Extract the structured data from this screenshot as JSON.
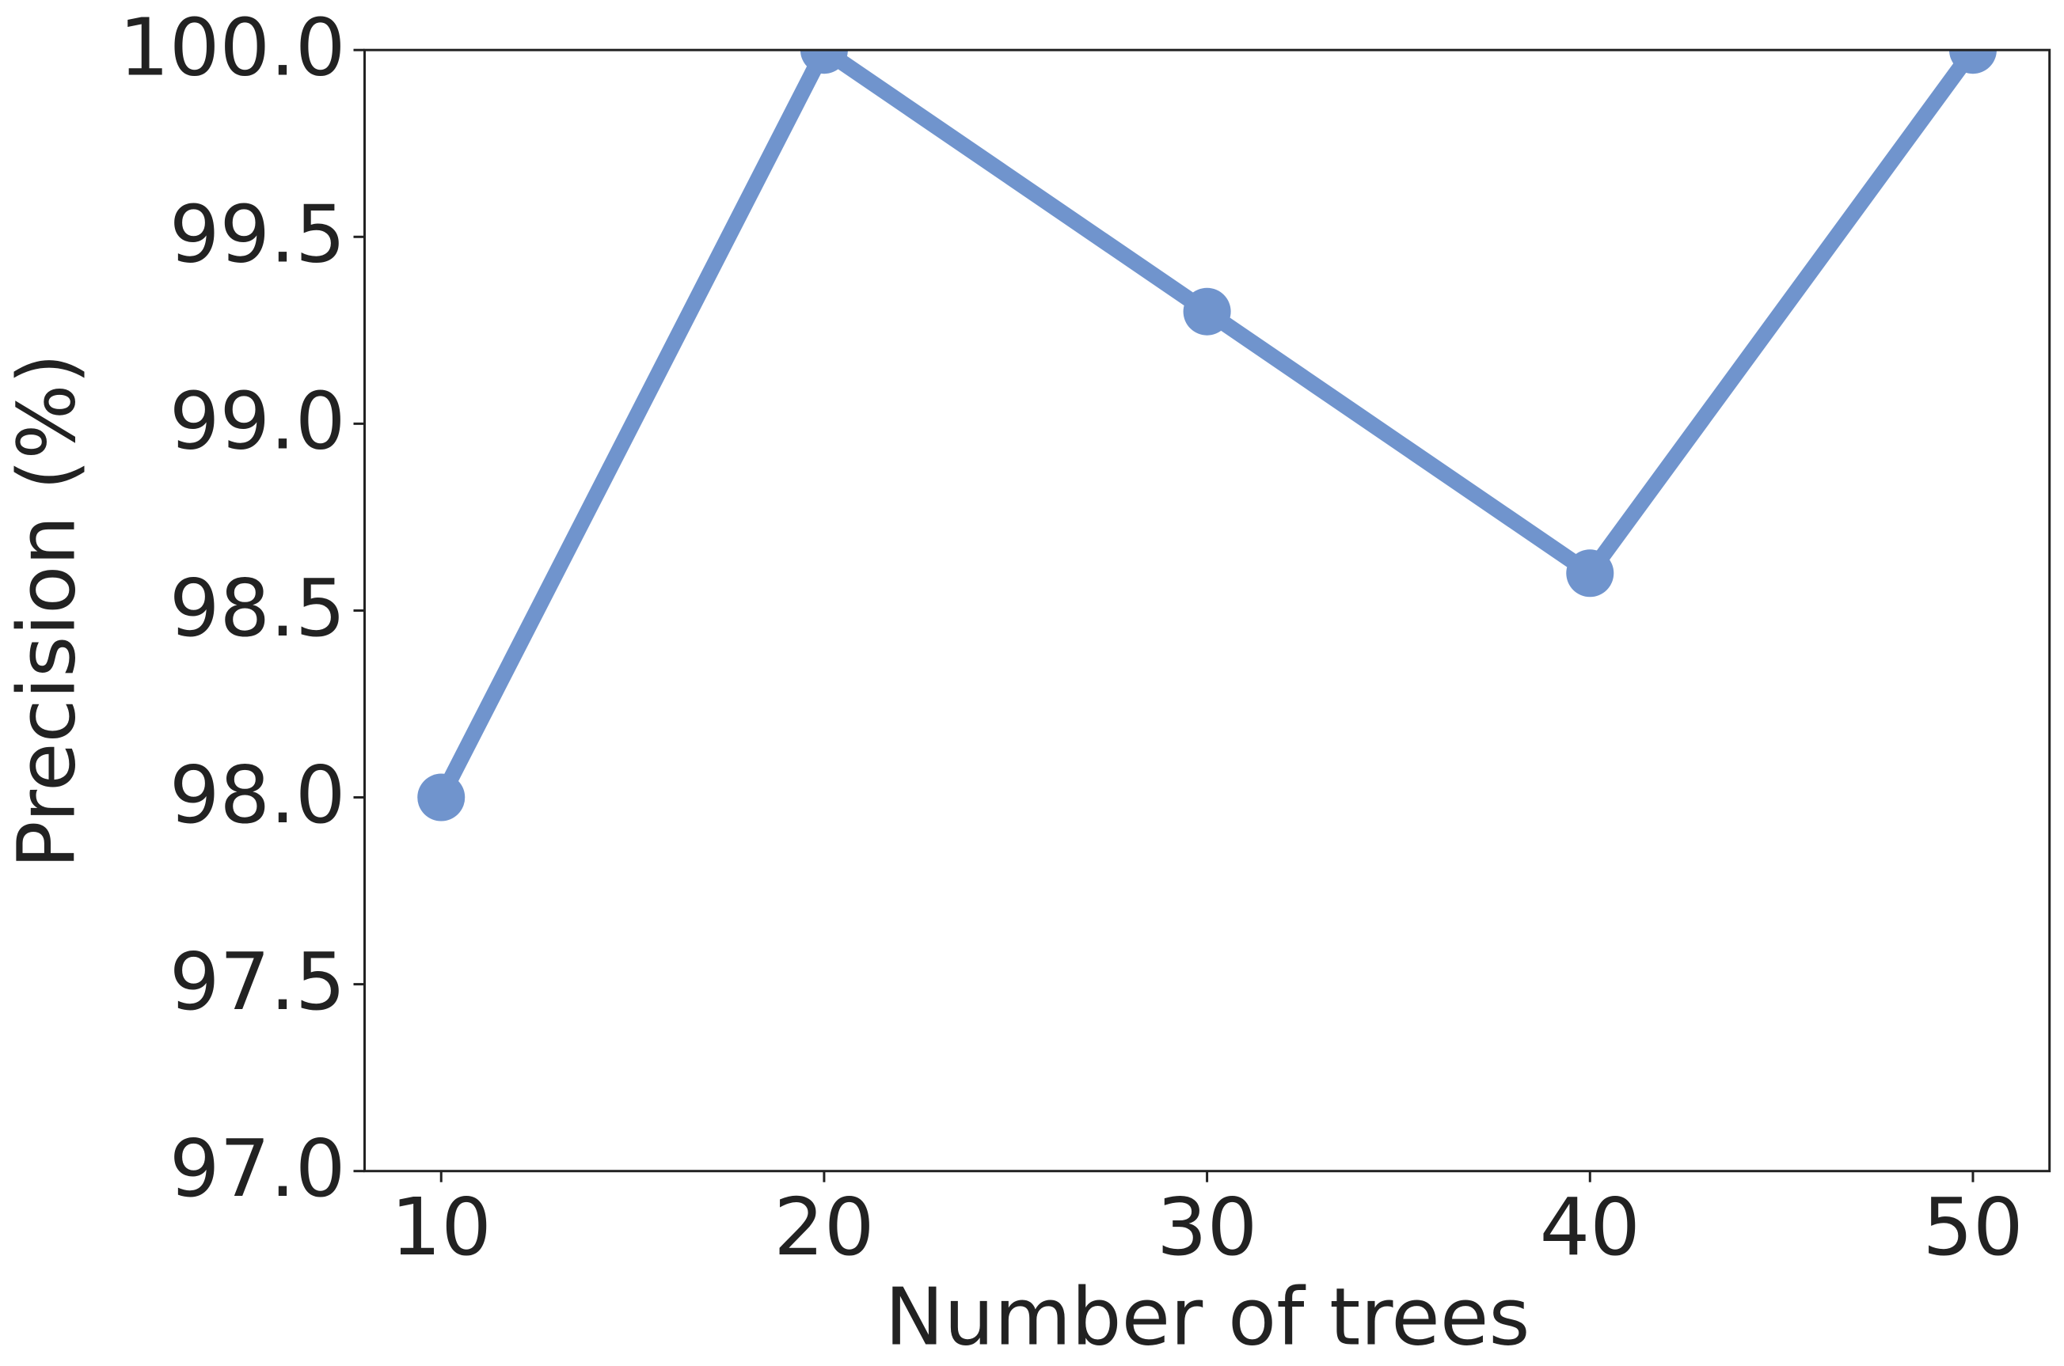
{
  "chart_data": {
    "type": "line",
    "x_label": "Number of trees",
    "y_label": "Precision (%)",
    "x": [
      10,
      20,
      30,
      40,
      50
    ],
    "series": [
      {
        "name": "Precision",
        "color": "#7094cd",
        "values": [
          98.0,
          100.0,
          99.3,
          98.6,
          100.0
        ]
      }
    ],
    "xlim": [
      8,
      52
    ],
    "xticks": [
      10,
      20,
      30,
      40,
      50
    ],
    "ylim": [
      97,
      100
    ],
    "yticks": [
      {
        "value": 97,
        "label": "97.0"
      },
      {
        "value": 97.5,
        "label": "97.5"
      },
      {
        "value": 98,
        "label": "98.0"
      },
      {
        "value": 98.5,
        "label": "98.5"
      },
      {
        "value": 99,
        "label": "99.0"
      },
      {
        "value": 99.5,
        "label": "99.5"
      },
      {
        "value": 100,
        "label": "100.0"
      }
    ],
    "grid": false,
    "legend": false
  }
}
